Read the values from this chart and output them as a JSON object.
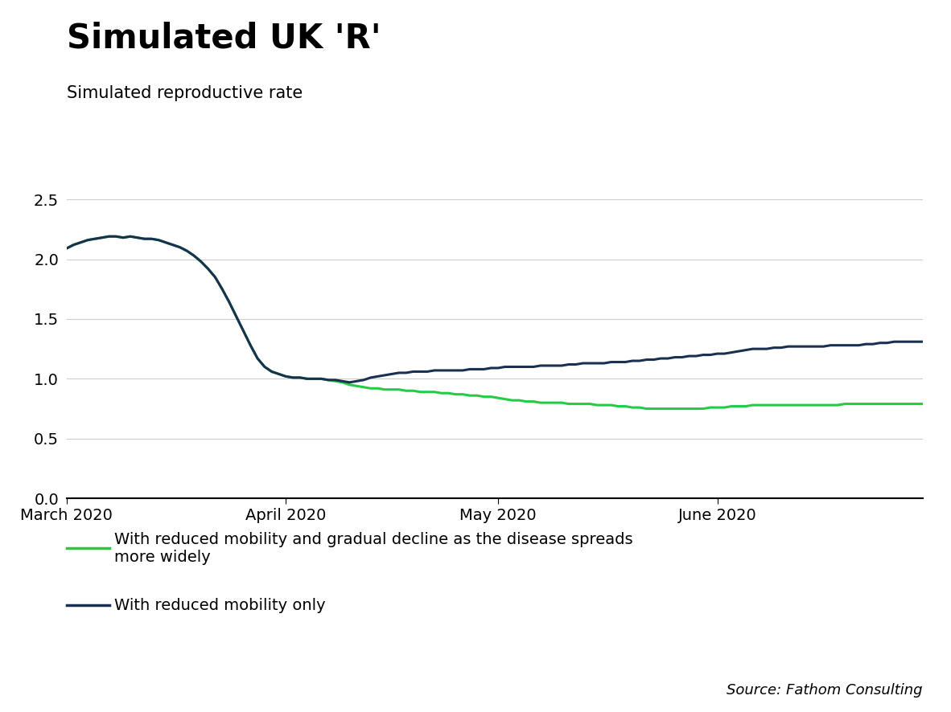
{
  "title": "Simulated UK 'R'",
  "subtitle": "Simulated reproductive rate",
  "source": "Source: Fathom Consulting",
  "ylim": [
    0.0,
    2.5
  ],
  "yticks": [
    0.0,
    0.5,
    1.0,
    1.5,
    2.0,
    2.5
  ],
  "xtick_labels": [
    "March 2020",
    "April 2020",
    "May 2020",
    "June 2020"
  ],
  "legend1": "With reduced mobility and gradual decline as the disease spreads\nmore widely",
  "legend2": "With reduced mobility only",
  "color_green": "#22cc44",
  "color_navy": "#1a3050",
  "line_width": 2.2,
  "title_fontsize": 30,
  "subtitle_fontsize": 15,
  "tick_fontsize": 14,
  "legend_fontsize": 14,
  "source_fontsize": 13,
  "background_color": "#ffffff",
  "days_total": 122,
  "navy_values": [
    2.09,
    2.12,
    2.14,
    2.16,
    2.17,
    2.18,
    2.19,
    2.19,
    2.18,
    2.19,
    2.18,
    2.17,
    2.17,
    2.16,
    2.14,
    2.12,
    2.1,
    2.07,
    2.03,
    1.98,
    1.92,
    1.85,
    1.75,
    1.64,
    1.52,
    1.4,
    1.28,
    1.17,
    1.1,
    1.06,
    1.04,
    1.02,
    1.01,
    1.01,
    1.0,
    1.0,
    1.0,
    0.99,
    0.99,
    0.98,
    0.97,
    0.98,
    0.99,
    1.01,
    1.02,
    1.03,
    1.04,
    1.05,
    1.05,
    1.06,
    1.06,
    1.06,
    1.07,
    1.07,
    1.07,
    1.07,
    1.07,
    1.08,
    1.08,
    1.08,
    1.09,
    1.09,
    1.1,
    1.1,
    1.1,
    1.1,
    1.1,
    1.11,
    1.11,
    1.11,
    1.11,
    1.12,
    1.12,
    1.13,
    1.13,
    1.13,
    1.13,
    1.14,
    1.14,
    1.14,
    1.15,
    1.15,
    1.16,
    1.16,
    1.17,
    1.17,
    1.18,
    1.18,
    1.19,
    1.19,
    1.2,
    1.2,
    1.21,
    1.21,
    1.22,
    1.23,
    1.24,
    1.25,
    1.25,
    1.25,
    1.26,
    1.26,
    1.27,
    1.27,
    1.27,
    1.27,
    1.27,
    1.27,
    1.28,
    1.28,
    1.28,
    1.28,
    1.28,
    1.29,
    1.29,
    1.3,
    1.3,
    1.31,
    1.31,
    1.31,
    1.31,
    1.31
  ],
  "green_values": [
    2.09,
    2.12,
    2.14,
    2.16,
    2.17,
    2.18,
    2.19,
    2.19,
    2.18,
    2.19,
    2.18,
    2.17,
    2.17,
    2.16,
    2.14,
    2.12,
    2.1,
    2.07,
    2.03,
    1.98,
    1.92,
    1.85,
    1.75,
    1.64,
    1.52,
    1.4,
    1.28,
    1.17,
    1.1,
    1.06,
    1.04,
    1.02,
    1.01,
    1.01,
    1.0,
    1.0,
    1.0,
    0.99,
    0.98,
    0.97,
    0.95,
    0.94,
    0.93,
    0.92,
    0.92,
    0.91,
    0.91,
    0.91,
    0.9,
    0.9,
    0.89,
    0.89,
    0.89,
    0.88,
    0.88,
    0.87,
    0.87,
    0.86,
    0.86,
    0.85,
    0.85,
    0.84,
    0.83,
    0.82,
    0.82,
    0.81,
    0.81,
    0.8,
    0.8,
    0.8,
    0.8,
    0.79,
    0.79,
    0.79,
    0.79,
    0.78,
    0.78,
    0.78,
    0.77,
    0.77,
    0.76,
    0.76,
    0.75,
    0.75,
    0.75,
    0.75,
    0.75,
    0.75,
    0.75,
    0.75,
    0.75,
    0.76,
    0.76,
    0.76,
    0.77,
    0.77,
    0.77,
    0.78,
    0.78,
    0.78,
    0.78,
    0.78,
    0.78,
    0.78,
    0.78,
    0.78,
    0.78,
    0.78,
    0.78,
    0.78,
    0.79,
    0.79,
    0.79,
    0.79,
    0.79,
    0.79,
    0.79,
    0.79,
    0.79,
    0.79,
    0.79,
    0.79
  ]
}
